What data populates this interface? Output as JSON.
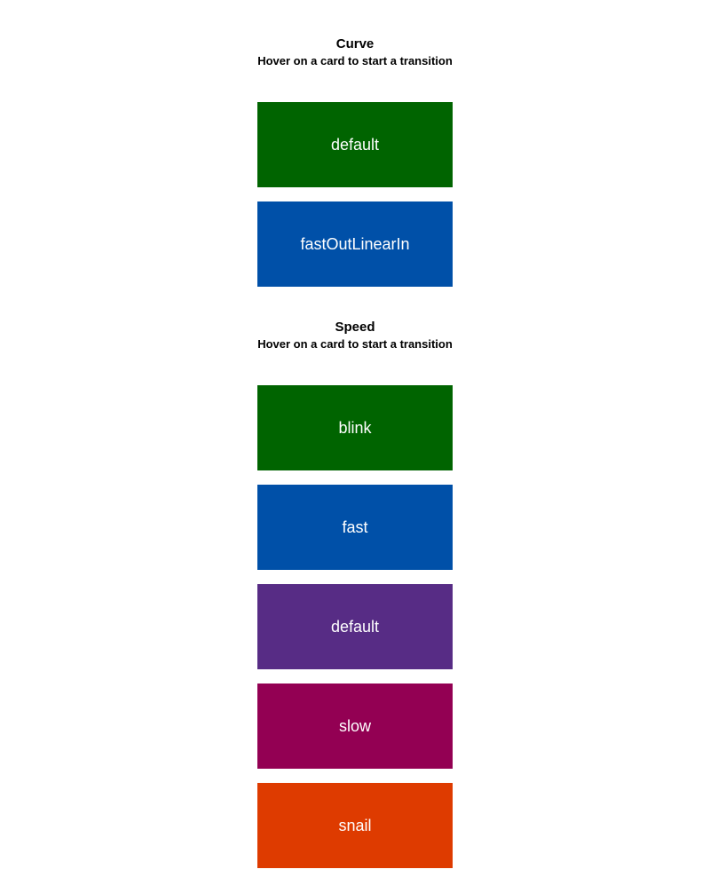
{
  "curve": {
    "title": "Curve",
    "subtitle": "Hover on a card to start a transition",
    "cards": [
      {
        "label": "default",
        "color": "#006400"
      },
      {
        "label": "fastOutLinearIn",
        "color": "#0050A8"
      }
    ]
  },
  "speed": {
    "title": "Speed",
    "subtitle": "Hover on a card to start a transition",
    "cards": [
      {
        "label": "blink",
        "color": "#006400"
      },
      {
        "label": "fast",
        "color": "#0050A8"
      },
      {
        "label": "default",
        "color": "#572C85"
      },
      {
        "label": "slow",
        "color": "#930053"
      },
      {
        "label": "snail",
        "color": "#DE3B00"
      }
    ]
  }
}
